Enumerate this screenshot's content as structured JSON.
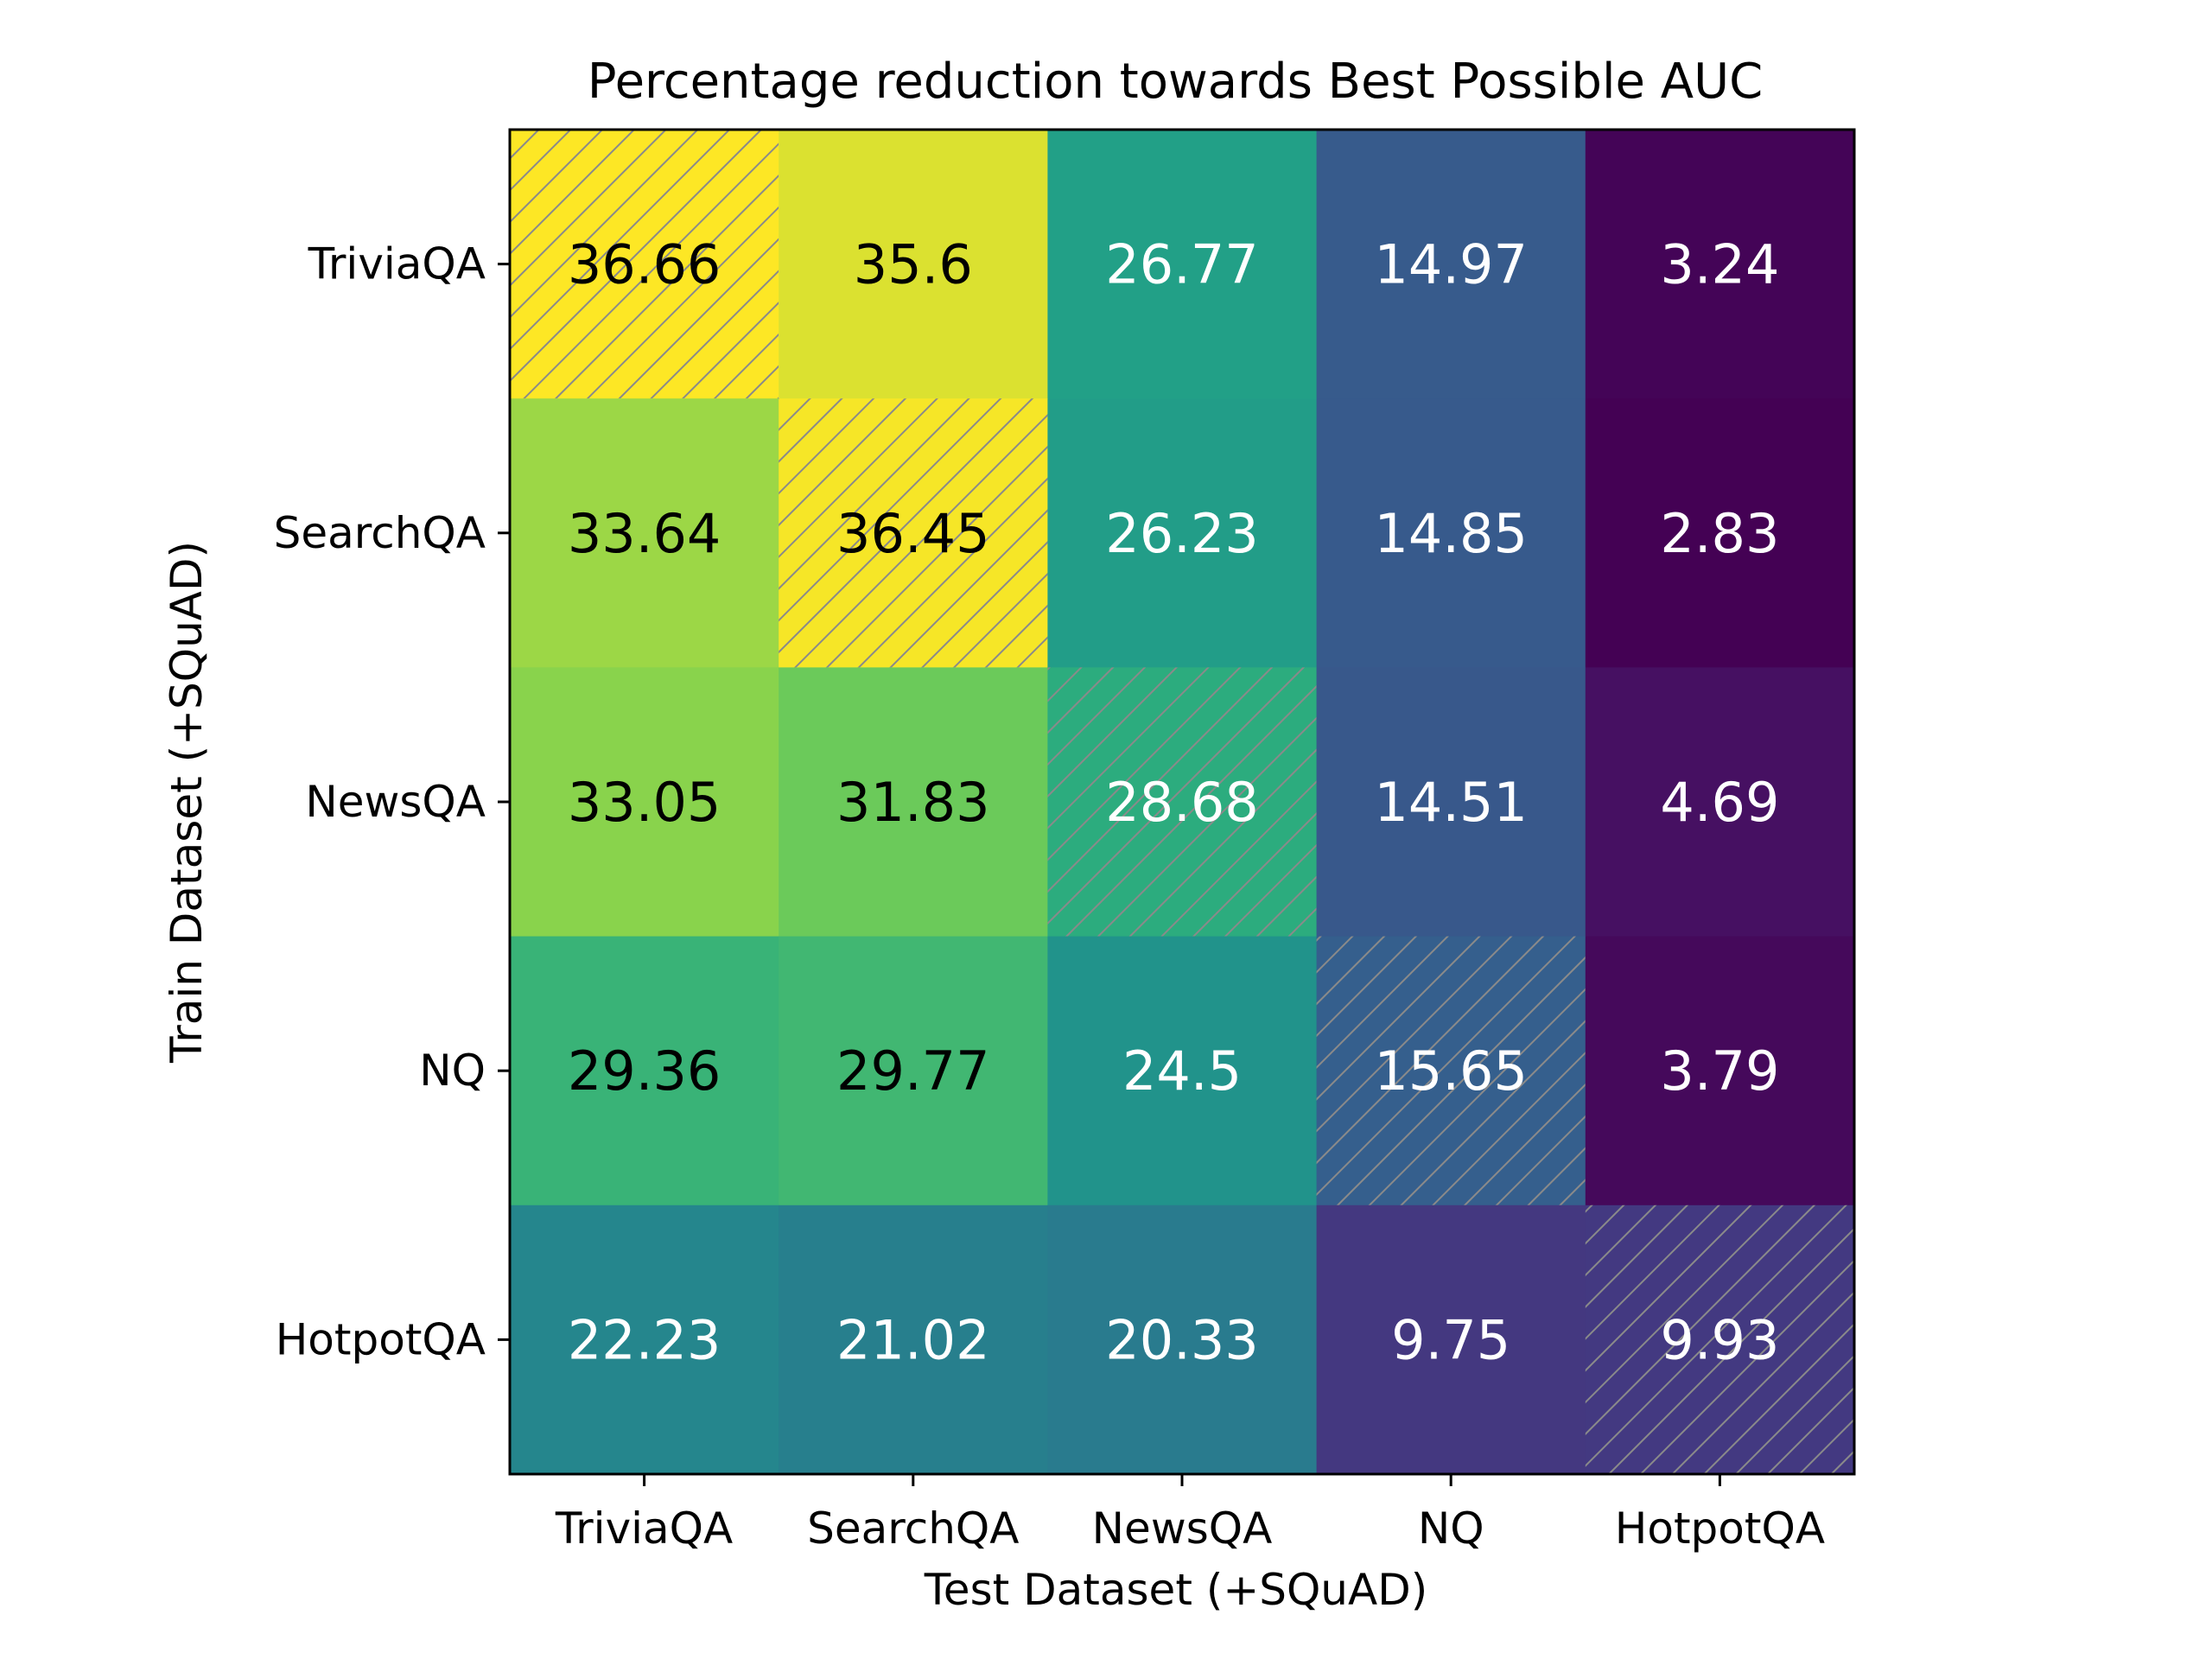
{
  "chart_data": {
    "type": "heatmap",
    "title": "Percentage reduction towards Best Possible AUC",
    "xlabel": "Test Dataset (+SQuAD)",
    "ylabel": "Train Dataset (+SQuAD)",
    "x_categories": [
      "TriviaQA",
      "SearchQA",
      "NewsQA",
      "NQ",
      "HotpotQA"
    ],
    "y_categories": [
      "TriviaQA",
      "SearchQA",
      "NewsQA",
      "NQ",
      "HotpotQA"
    ],
    "values": [
      [
        36.66,
        35.6,
        26.77,
        14.97,
        3.24
      ],
      [
        33.64,
        36.45,
        26.23,
        14.85,
        2.83
      ],
      [
        33.05,
        31.83,
        28.68,
        14.51,
        4.69
      ],
      [
        29.36,
        29.77,
        24.5,
        15.65,
        3.79
      ],
      [
        22.23,
        21.02,
        20.33,
        9.75,
        9.93
      ]
    ],
    "cell_labels": [
      [
        "36.66",
        "35.6",
        "26.77",
        "14.97",
        "3.24"
      ],
      [
        "33.64",
        "36.45",
        "26.23",
        "14.85",
        "2.83"
      ],
      [
        "33.05",
        "31.83",
        "28.68",
        "14.51",
        "4.69"
      ],
      [
        "29.36",
        "29.77",
        "24.5",
        "15.65",
        "3.79"
      ],
      [
        "22.23",
        "21.02",
        "20.33",
        "9.75",
        "9.93"
      ]
    ],
    "colormap": "viridis",
    "hatched_diagonal": true
  }
}
